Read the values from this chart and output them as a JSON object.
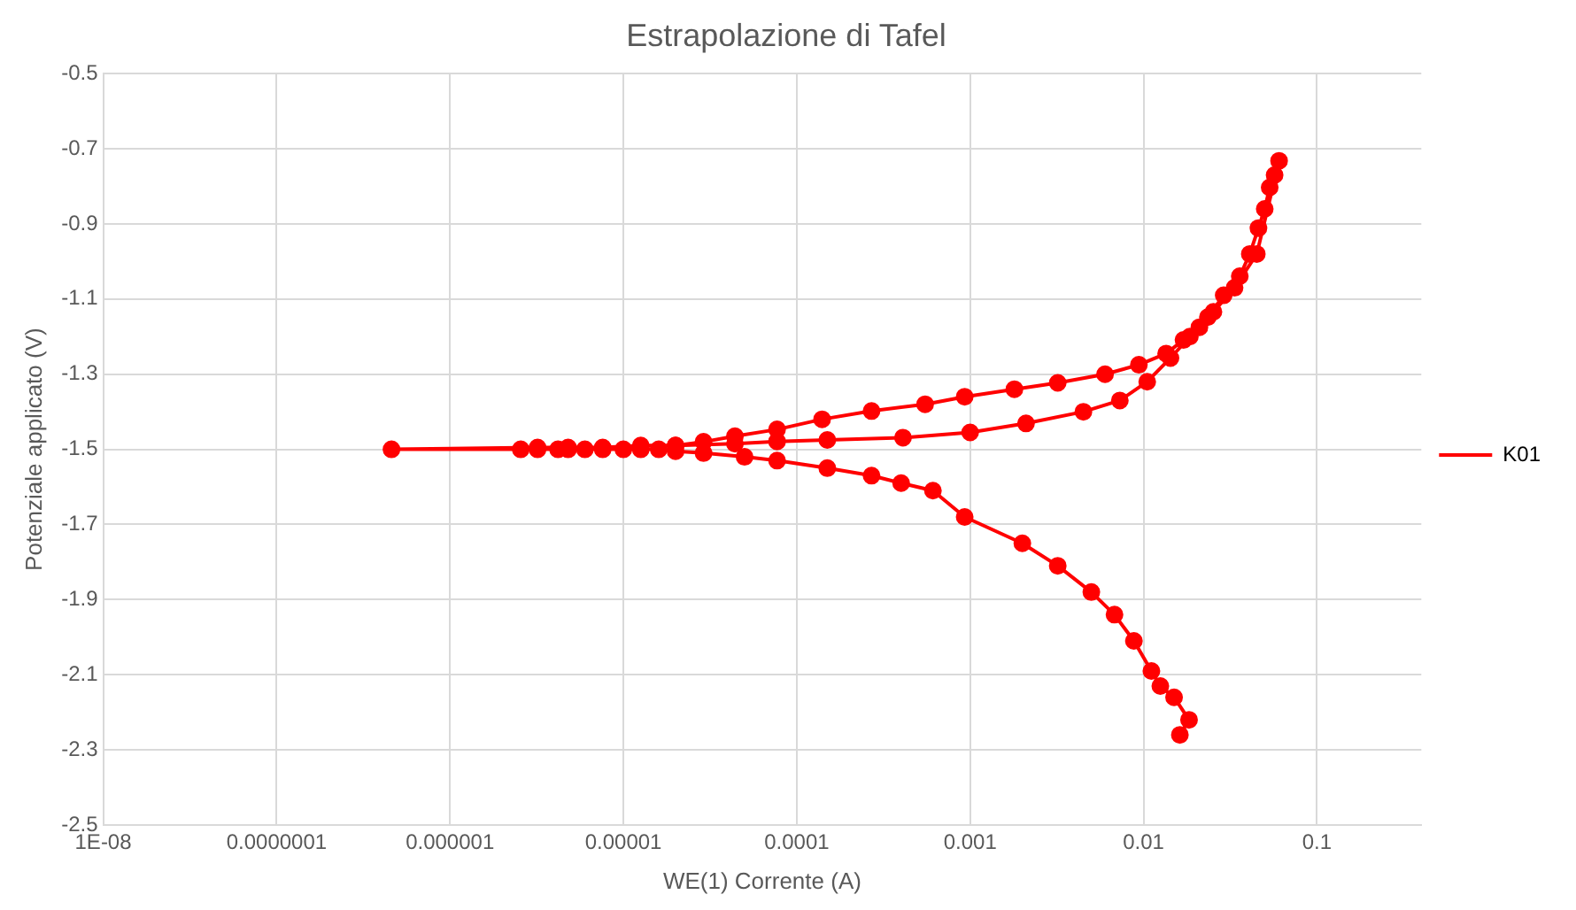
{
  "chart_data": {
    "type": "line",
    "title": "Estrapolazione di Tafel",
    "xlabel": "WE(1) Corrente (A)",
    "ylabel": "Potenziale applicato (V)",
    "log": "x",
    "grid": true,
    "legend": "right",
    "marker": "circle",
    "line_style": "solid",
    "xlim": [
      1e-08,
      0.4
    ],
    "xticks": [
      {
        "value": 1e-08,
        "label": "1E-08"
      },
      {
        "value": 1e-07,
        "label": "0.0000001"
      },
      {
        "value": 1e-06,
        "label": "0.000001"
      },
      {
        "value": 1e-05,
        "label": "0.00001"
      },
      {
        "value": 0.0001,
        "label": "0.0001"
      },
      {
        "value": 0.001,
        "label": "0.001"
      },
      {
        "value": 0.01,
        "label": "0.01"
      },
      {
        "value": 0.1,
        "label": "0.1"
      }
    ],
    "ylim": [
      -2.5,
      -0.5
    ],
    "yticks": [
      -2.5,
      -2.3,
      -2.1,
      -1.9,
      -1.7,
      -1.5,
      -1.3,
      -1.1,
      -0.9,
      -0.7,
      -0.5
    ],
    "series": [
      {
        "name": "K01",
        "color": "#ff0000",
        "x": [
          0.0162,
          0.0183,
          0.015,
          0.0125,
          0.0111,
          0.0088,
          0.0068,
          0.005,
          0.0032,
          0.002,
          0.00093,
          0.00061,
          0.0004,
          0.00027,
          0.00015,
          7.7e-05,
          5e-05,
          2.9e-05,
          2e-05,
          1.6e-05,
          1.26e-05,
          1e-05,
          7.6e-06,
          6e-06,
          4.8e-06,
          4.2e-06,
          3.2e-06,
          2.56e-06,
          4.6e-07,
          3.2e-06,
          4.8e-06,
          7.6e-06,
          1.26e-05,
          2e-05,
          4.4e-05,
          7.7e-05,
          0.00015,
          0.00041,
          0.001,
          0.0021,
          0.0045,
          0.0073,
          0.0105,
          0.0143,
          0.0185,
          0.0235,
          0.029,
          0.0359,
          0.041,
          0.046,
          0.05,
          0.0534,
          0.057,
          0.0605,
          0.045,
          0.0335,
          0.0253,
          0.021,
          0.017,
          0.0135,
          0.0094,
          0.006,
          0.0032,
          0.0018,
          0.00093,
          0.00055,
          0.00027,
          0.00014,
          7.7e-05,
          4.4e-05,
          2.9e-05,
          2e-05
        ],
        "values": [
          -2.26,
          -2.22,
          -2.16,
          -2.13,
          -2.09,
          -2.01,
          -1.94,
          -1.88,
          -1.81,
          -1.75,
          -1.68,
          -1.61,
          -1.59,
          -1.57,
          -1.55,
          -1.53,
          -1.52,
          -1.51,
          -1.505,
          -1.5,
          -1.5,
          -1.5,
          -1.5,
          -1.5,
          -1.5,
          -1.5,
          -1.5,
          -1.5,
          -1.5,
          -1.495,
          -1.495,
          -1.495,
          -1.49,
          -1.49,
          -1.485,
          -1.479,
          -1.475,
          -1.469,
          -1.455,
          -1.431,
          -1.4,
          -1.37,
          -1.32,
          -1.257,
          -1.2,
          -1.148,
          -1.09,
          -1.039,
          -0.98,
          -0.911,
          -0.86,
          -0.803,
          -0.77,
          -0.732,
          -0.98,
          -1.07,
          -1.134,
          -1.175,
          -1.209,
          -1.245,
          -1.275,
          -1.3,
          -1.323,
          -1.34,
          -1.36,
          -1.38,
          -1.398,
          -1.42,
          -1.447,
          -1.465,
          -1.48,
          -1.49
        ]
      }
    ]
  }
}
